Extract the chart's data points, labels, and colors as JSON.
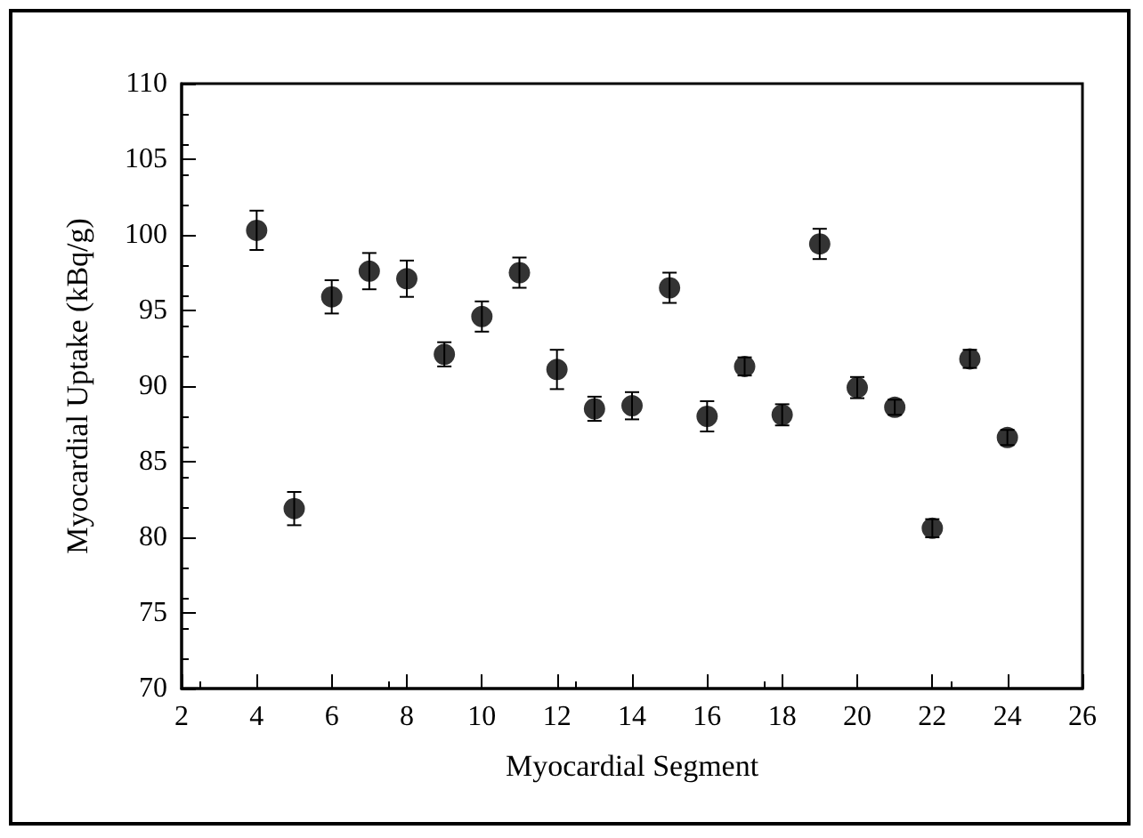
{
  "chart_data": {
    "type": "scatter",
    "xlabel": "Myocardial Segment",
    "ylabel": "Myocardial Uptake (kBq/g)",
    "x": [
      4,
      5,
      6,
      7,
      8,
      9,
      10,
      11,
      12,
      13,
      14,
      15,
      16,
      17,
      18,
      19,
      20,
      21,
      22,
      23,
      24
    ],
    "values": [
      100.3,
      81.9,
      95.9,
      97.6,
      97.1,
      92.1,
      94.6,
      97.5,
      91.1,
      88.5,
      88.7,
      96.5,
      88.0,
      91.3,
      88.1,
      99.4,
      89.9,
      88.6,
      80.6,
      91.8,
      86.6
    ],
    "errors": [
      1.3,
      1.1,
      1.1,
      1.2,
      1.2,
      0.8,
      1.0,
      1.0,
      1.3,
      0.8,
      0.9,
      1.0,
      1.0,
      0.6,
      0.7,
      1.0,
      0.7,
      0.5,
      0.6,
      0.6,
      0.5
    ],
    "color": "#000000",
    "marker": "circle",
    "xlim": [
      2,
      26
    ],
    "xticks": [
      2,
      4,
      6,
      8,
      10,
      12,
      14,
      16,
      18,
      20,
      22,
      24,
      26
    ],
    "ylim": [
      70,
      110
    ],
    "yticks": [
      70,
      75,
      80,
      85,
      90,
      95,
      100,
      105,
      110
    ],
    "grid": false
  }
}
